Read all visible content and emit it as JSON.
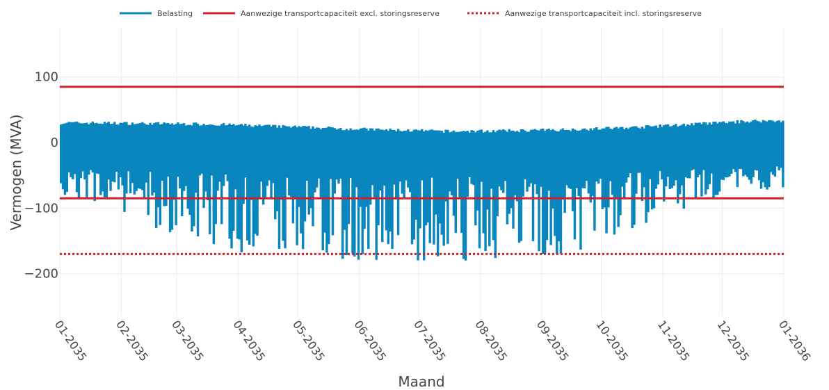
{
  "chart_data": {
    "type": "line",
    "xlabel": "Maand",
    "ylabel": "Vermogen (MVA)",
    "ylim": [
      -265,
      175
    ],
    "yticks": [
      100,
      0,
      -100,
      -200
    ],
    "ytick_labels": [
      "100",
      "0",
      "−100",
      "−200"
    ],
    "xlim": [
      "2035-01-01",
      "2036-01-01"
    ],
    "xticks": [
      "2035-01-01",
      "2035-02-01",
      "2035-03-01",
      "2035-04-01",
      "2035-05-01",
      "2035-06-01",
      "2035-07-01",
      "2035-08-01",
      "2035-09-01",
      "2035-10-01",
      "2035-11-01",
      "2035-12-01",
      "2036-01-01"
    ],
    "xtick_labels": [
      "01-2035",
      "02-2035",
      "03-2035",
      "04-2035",
      "05-2035",
      "06-2035",
      "07-2035",
      "08-2035",
      "09-2035",
      "10-2035",
      "11-2035",
      "12-2035",
      "01-2036"
    ],
    "grid": true,
    "legend_position": "top",
    "series": [
      {
        "name": "Belasting",
        "color": "#0a86bf",
        "style": "band",
        "monthly_max": [
          30,
          29,
          28,
          25,
          22,
          19,
          17,
          18,
          20,
          23,
          28,
          33
        ],
        "monthly_min": [
          -85,
          -122,
          -148,
          -172,
          -178,
          -183,
          -175,
          -165,
          -168,
          -135,
          -95,
          -70
        ]
      },
      {
        "name": "Aanwezige transportcapaciteit excl. storingsreserve",
        "color": "#d0202a",
        "style": "solid",
        "values": [
          85,
          -85
        ]
      },
      {
        "name": "Aanwezige transportcapaciteit incl. storingsreserve",
        "color": "#d0202a",
        "style": "dotted",
        "values": [
          -170
        ]
      }
    ]
  }
}
